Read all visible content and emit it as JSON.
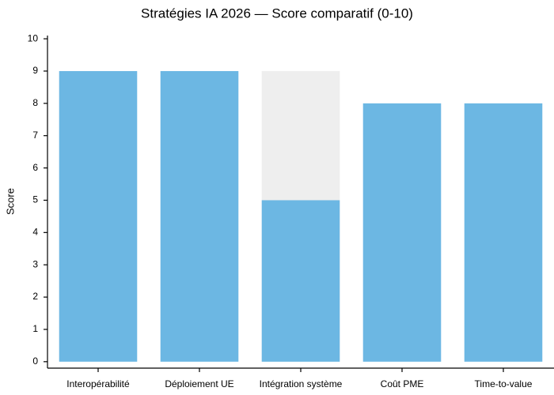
{
  "chart_data": {
    "type": "bar",
    "title": "Stratégies IA 2026 — Score comparatif (0-10)",
    "y_label": "Score",
    "categories": [
      "Interopérabilité",
      "Déploiement UE",
      "Intégration système",
      "Coût PME",
      "Time-to-value"
    ],
    "barmode": "overlay",
    "series": [
      {
        "color": "#eeeeee",
        "values": [
          null,
          null,
          9,
          null,
          null
        ]
      },
      {
        "color": "#6cb7e3",
        "values": [
          9,
          9,
          5,
          8,
          8
        ]
      }
    ],
    "ylim": [
      -0.2,
      10.1
    ],
    "yticks": [
      0,
      1,
      2,
      3,
      4,
      5,
      6,
      7,
      8,
      9,
      10
    ],
    "grid": false
  }
}
